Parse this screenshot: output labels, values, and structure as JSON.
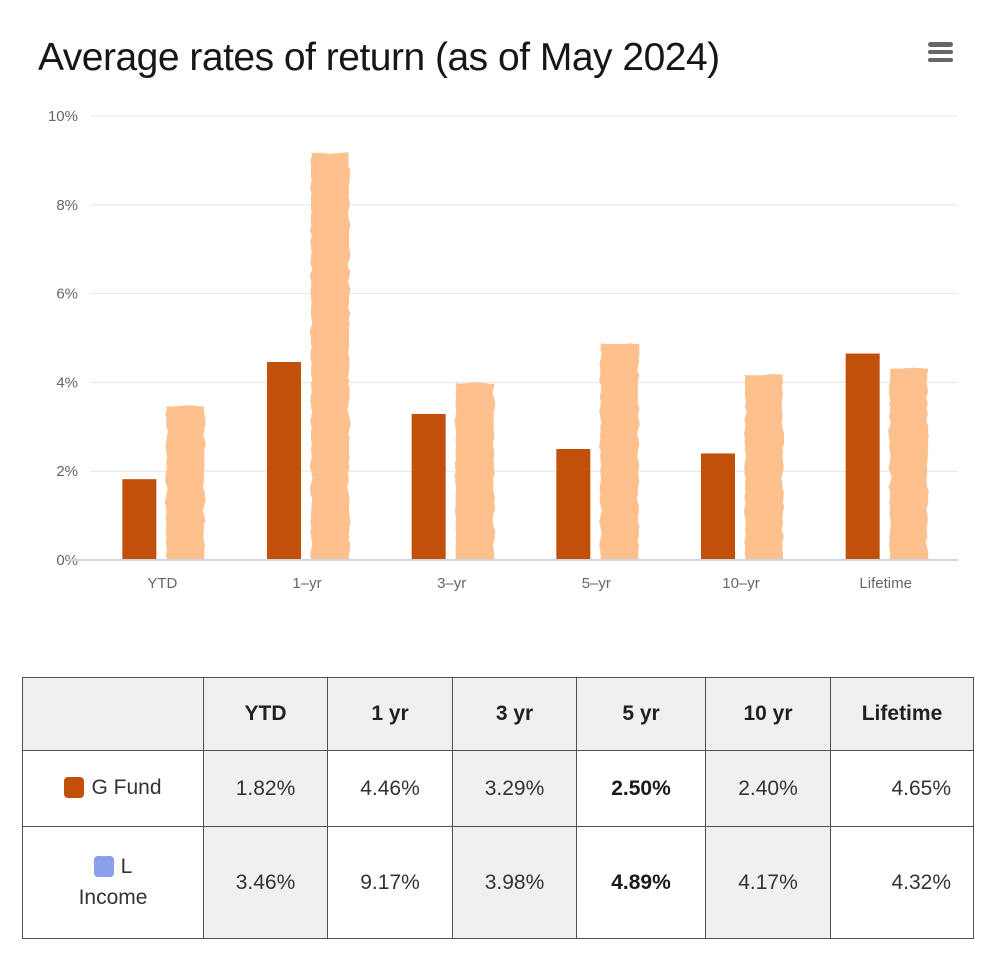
{
  "header": {
    "title": "Average rates of return (as of May 2024)",
    "menu_icon": "hamburger-icon"
  },
  "chart_data": {
    "type": "bar",
    "title": "Average rates of return (as of May 2024)",
    "categories": [
      "YTD",
      "1–yr",
      "3–yr",
      "5–yr",
      "10–yr",
      "Lifetime"
    ],
    "series": [
      {
        "name": "G Fund",
        "color": "#c0500a",
        "values": [
          1.82,
          4.46,
          3.29,
          2.5,
          2.4,
          4.65
        ]
      },
      {
        "name": "L Income",
        "color": "#fec08c",
        "sketchy": true,
        "values": [
          3.46,
          9.17,
          3.98,
          4.89,
          4.17,
          4.32
        ]
      }
    ],
    "xlabel": "",
    "ylabel": "",
    "ylim": [
      0,
      10
    ],
    "grid": true,
    "legend_position": "table-below",
    "yticks": [
      {
        "value": 0,
        "label": "0%"
      },
      {
        "value": 2,
        "label": "2%"
      },
      {
        "value": 4,
        "label": "4%"
      },
      {
        "value": 6,
        "label": "6%"
      },
      {
        "value": 8,
        "label": "8%"
      },
      {
        "value": 10,
        "label": "10%"
      }
    ],
    "colors": {
      "axis_label": "#666666",
      "gridline": "#e6e6e6",
      "axis_line": "#ccd6eb"
    }
  },
  "table": {
    "columns": [
      "",
      "YTD",
      "1 yr",
      "3 yr",
      "5 yr",
      "10 yr",
      "Lifetime"
    ],
    "bold_column": "5 yr",
    "rows": [
      {
        "label": "G Fund",
        "swatch_color": "#c0500a",
        "swatch_icon": "g-fund-swatch-icon",
        "values": [
          "1.82%",
          "4.46%",
          "3.29%",
          "2.50%",
          "2.40%",
          "4.65%"
        ]
      },
      {
        "label": "L Income",
        "swatch_color": "#8ba0ea",
        "swatch_icon": "l-income-swatch-icon",
        "values": [
          "3.46%",
          "9.17%",
          "3.98%",
          "4.89%",
          "4.17%",
          "4.32%"
        ]
      }
    ]
  }
}
